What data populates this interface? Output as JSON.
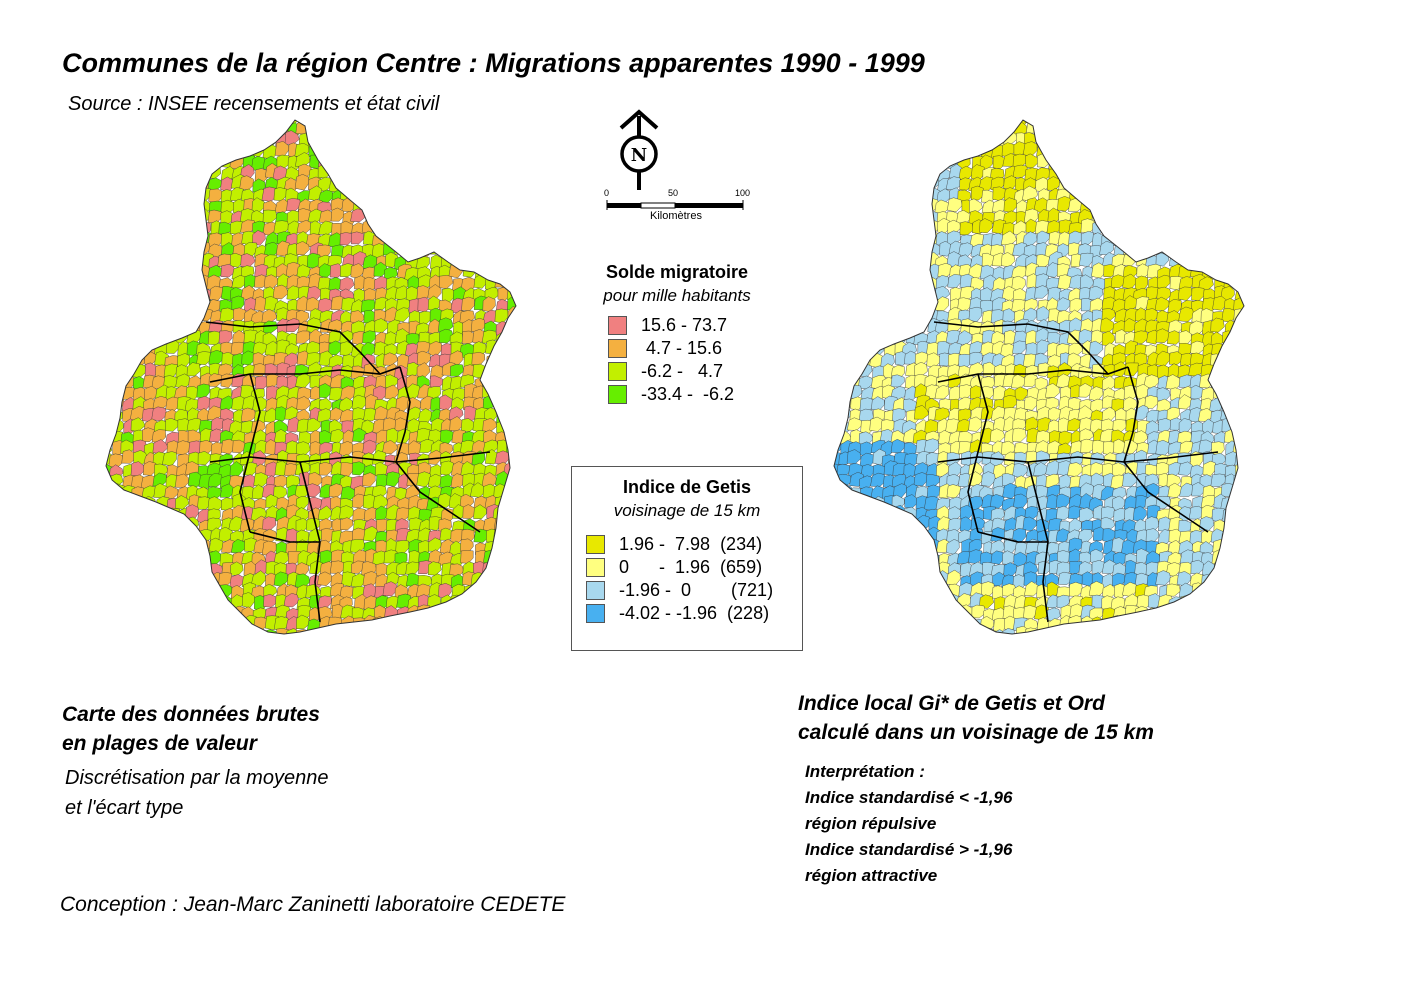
{
  "title": "Communes de la région Centre : Migrations apparentes 1990 - 1999",
  "source": "Source : INSEE recensements et état civil",
  "scale": {
    "ticks": [
      "0",
      "50",
      "100"
    ],
    "unit": "Kilomètres"
  },
  "north_label": "N",
  "legend_solde": {
    "title": "Solde migratoire",
    "subtitle": "pour mille habitants",
    "classes": [
      {
        "label": "15.6 - 73.7",
        "color": "#f08080"
      },
      {
        "label": " 4.7 - 15.6",
        "color": "#f4b040"
      },
      {
        "label": "-6.2 -   4.7",
        "color": "#c2ef00"
      },
      {
        "label": "-33.4 -  -6.2",
        "color": "#66ee00"
      }
    ]
  },
  "legend_getis": {
    "title": "Indice de Getis",
    "subtitle": "voisinage de 15 km",
    "classes": [
      {
        "label": "1.96 -  7.98  (234)",
        "color": "#e8e800"
      },
      {
        "label": "0      -  1.96  (659)",
        "color": "#ffff80"
      },
      {
        "label": "-1.96 -  0        (721)",
        "color": "#a8d8ee"
      },
      {
        "label": "-4.02 - -1.96  (228)",
        "color": "#48b0f0"
      }
    ]
  },
  "left_caption": {
    "line1": "Carte des données brutes",
    "line2": "en plages de valeur",
    "sub1": "Discrétisation par la moyenne",
    "sub2": "et l'écart type"
  },
  "right_caption": {
    "line1": "Indice local Gi* de Getis et Ord",
    "line2": "calculé dans un voisinage de 15 km",
    "interp": [
      "Interprétation :",
      "Indice standardisé < -1,96",
      "région répulsive",
      "Indice standardisé > -1,96",
      "région attractive"
    ]
  },
  "credit": "Conception : Jean-Marc Zaninetti laboratoire CEDETE"
}
